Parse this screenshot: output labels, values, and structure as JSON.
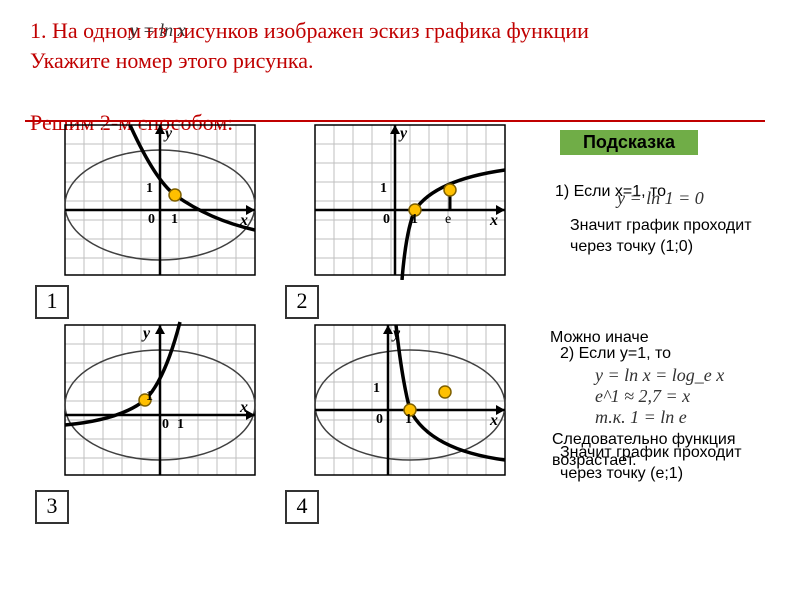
{
  "title": {
    "prefix": "1. На одном из рисунков изображен эскиз графика функции",
    "gap": "                     ",
    "suffix": "Укажите номер этого рисунка."
  },
  "subtitle": "Решим 2-м способом:",
  "formula_main": "y = ln x",
  "hint_label": "Подсказка",
  "hint1_a": "1) Если x=1, то",
  "hint1_formula": "y = ln 1 = 0",
  "hint1_b": "Значит график проходит через точку (1;0)",
  "hint2_pre": "Можно иначе",
  "hint2_a": "2) Если y=1, то",
  "hint2_formula1": "y = ln x = log_e x",
  "hint2_formula2": "e^1 ≈ 2,7 = x",
  "hint2_formula3": "т.к. 1 = ln e",
  "hint3_a": "Следовательно функция возрастает.",
  "hint3_b": "Значит график проходит через точку (e;1)",
  "num_labels": {
    "n1": "1",
    "n2": "2",
    "n3": "3",
    "n4": "4"
  },
  "graph": {
    "grid_color": "#bfbfbf",
    "axis_color": "#000000",
    "curve_color": "#000000",
    "dot_fill": "#ffc000",
    "dot_stroke": "#7f6000",
    "ellipse_stroke": "#404040",
    "e_label": "е",
    "axis_x": "x",
    "axis_y": "y",
    "zero": "0",
    "one": "1"
  }
}
